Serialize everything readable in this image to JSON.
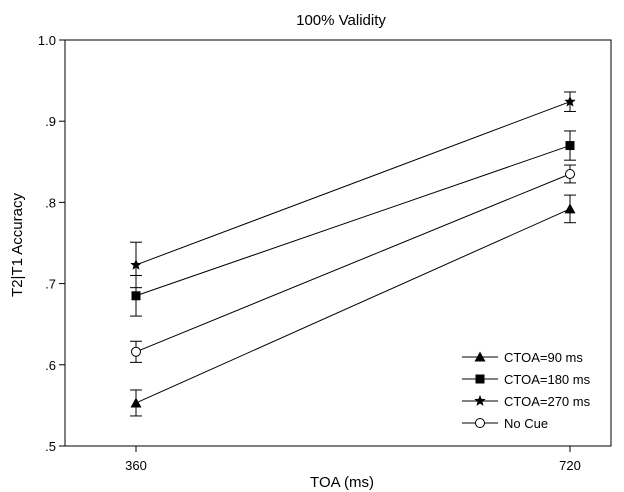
{
  "chart_data": {
    "type": "line",
    "title": "100% Validity",
    "xlabel": "TOA (ms)",
    "ylabel": "T2|T1 Accuracy",
    "x": [
      360,
      720
    ],
    "x_tick_labels": [
      "360",
      "720"
    ],
    "ylim": [
      0.5,
      1.0
    ],
    "y_ticks": [
      0.5,
      0.6,
      0.7,
      0.8,
      0.9,
      1.0
    ],
    "y_tick_labels": [
      ".5",
      ".6",
      ".7",
      ".8",
      ".9",
      "1.0"
    ],
    "grid": false,
    "legend_position": "bottom-right",
    "series": [
      {
        "name": "CTOA=90 ms",
        "marker": "triangle",
        "values": [
          0.553,
          0.792
        ],
        "errors": [
          0.016,
          0.017
        ]
      },
      {
        "name": "CTOA=180 ms",
        "marker": "square",
        "values": [
          0.685,
          0.87
        ],
        "errors": [
          0.025,
          0.018
        ]
      },
      {
        "name": "CTOA=270 ms",
        "marker": "star",
        "values": [
          0.723,
          0.924
        ],
        "errors": [
          0.028,
          0.012
        ]
      },
      {
        "name": "No Cue",
        "marker": "open-circle",
        "values": [
          0.616,
          0.835
        ],
        "errors": [
          0.013,
          0.011
        ]
      }
    ]
  }
}
